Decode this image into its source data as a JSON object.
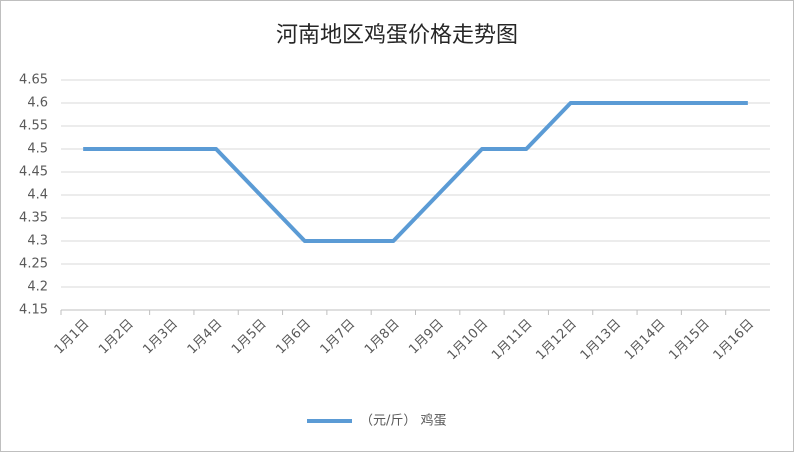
{
  "chart_data": {
    "type": "line",
    "title": "河南地区鸡蛋价格走势图",
    "categories": [
      "1月1日",
      "1月2日",
      "1月3日",
      "1月4日",
      "1月5日",
      "1月6日",
      "1月7日",
      "1月8日",
      "1月9日",
      "1月10日",
      "1月11日",
      "1月12日",
      "1月13日",
      "1月14日",
      "1月15日",
      "1月16日"
    ],
    "series": [
      {
        "name": "（元/斤） 鸡蛋",
        "color": "#5b9bd5",
        "values": [
          4.5,
          4.5,
          4.5,
          4.5,
          4.4,
          4.3,
          4.3,
          4.3,
          4.4,
          4.5,
          4.5,
          4.6,
          4.6,
          4.6,
          4.6,
          4.6
        ]
      }
    ],
    "ylim": [
      4.15,
      4.65
    ],
    "yticks": [
      4.15,
      4.2,
      4.25,
      4.3,
      4.35,
      4.4,
      4.45,
      4.5,
      4.55,
      4.6,
      4.65
    ],
    "grid": true,
    "legend": "bottom"
  }
}
